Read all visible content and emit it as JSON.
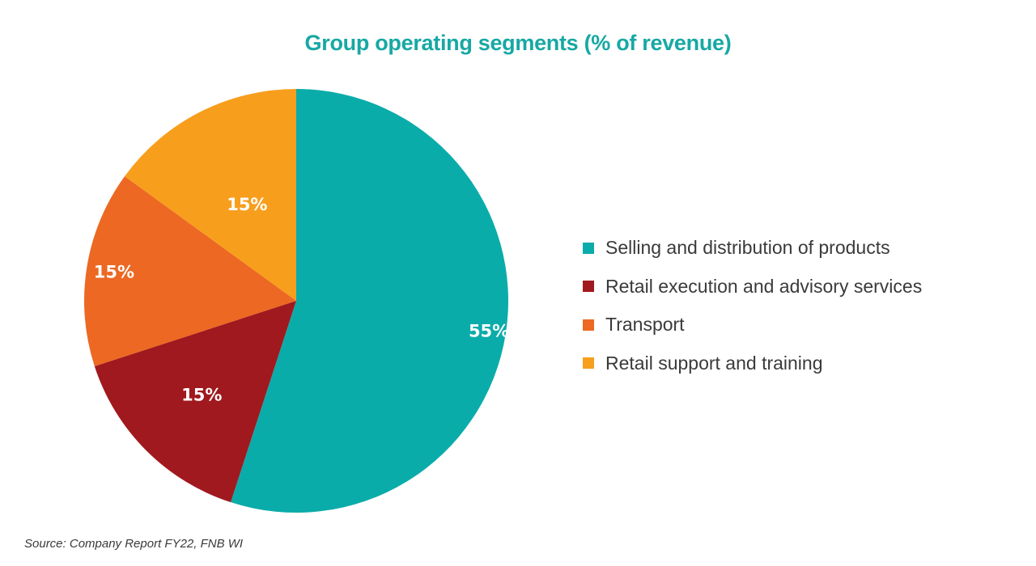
{
  "colors": {
    "title": "#17a8a4",
    "text": "#3a3a3a"
  },
  "chart_data": {
    "type": "pie",
    "title": "Group operating segments (% of revenue)",
    "slices": [
      {
        "label": "Selling and distribution of products",
        "value": 55,
        "display": "55%",
        "color": "#0aacaa"
      },
      {
        "label": "Retail execution and advisory services",
        "value": 15,
        "display": "15%",
        "color": "#a0191e"
      },
      {
        "label": "Transport",
        "value": 15,
        "display": "15%",
        "color": "#ec6823"
      },
      {
        "label": "Retail support and training",
        "value": 15,
        "display": "15%",
        "color": "#f89e1d"
      }
    ],
    "start": "12 o'clock",
    "direction": "clockwise",
    "legend_position": "right"
  },
  "footer": {
    "source": "Source: Company Report FY22, FNB WI"
  }
}
